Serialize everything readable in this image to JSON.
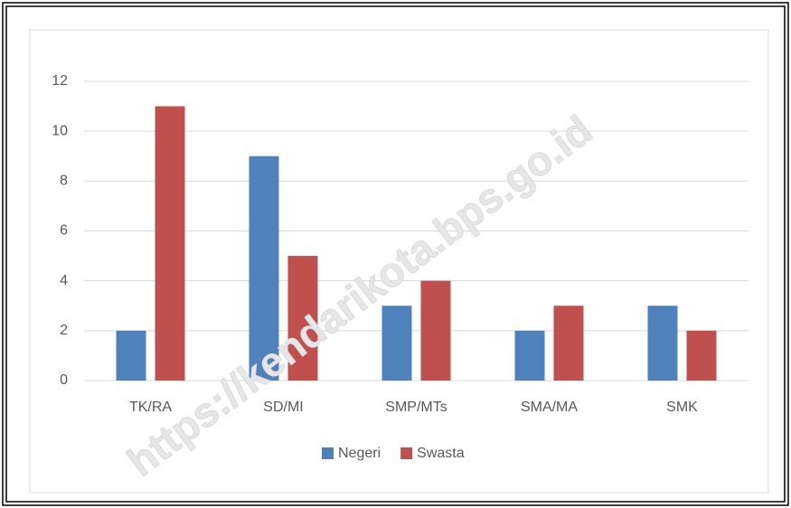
{
  "watermark": "https://kendarikota.bps.go.id",
  "chart_data": {
    "type": "bar",
    "categories": [
      "TK/RA",
      "SD/MI",
      "SMP/MTs",
      "SMA/MA",
      "SMK"
    ],
    "series": [
      {
        "name": "Negeri",
        "color": "#4f81bd",
        "values": [
          2,
          9,
          3,
          2,
          3
        ]
      },
      {
        "name": "Swasta",
        "color": "#c0504d",
        "values": [
          11,
          5,
          4,
          3,
          2
        ]
      }
    ],
    "ylim": [
      0,
      12
    ],
    "yticks": [
      0,
      2,
      4,
      6,
      8,
      10,
      12
    ],
    "grid": true,
    "legend": "bottom"
  }
}
